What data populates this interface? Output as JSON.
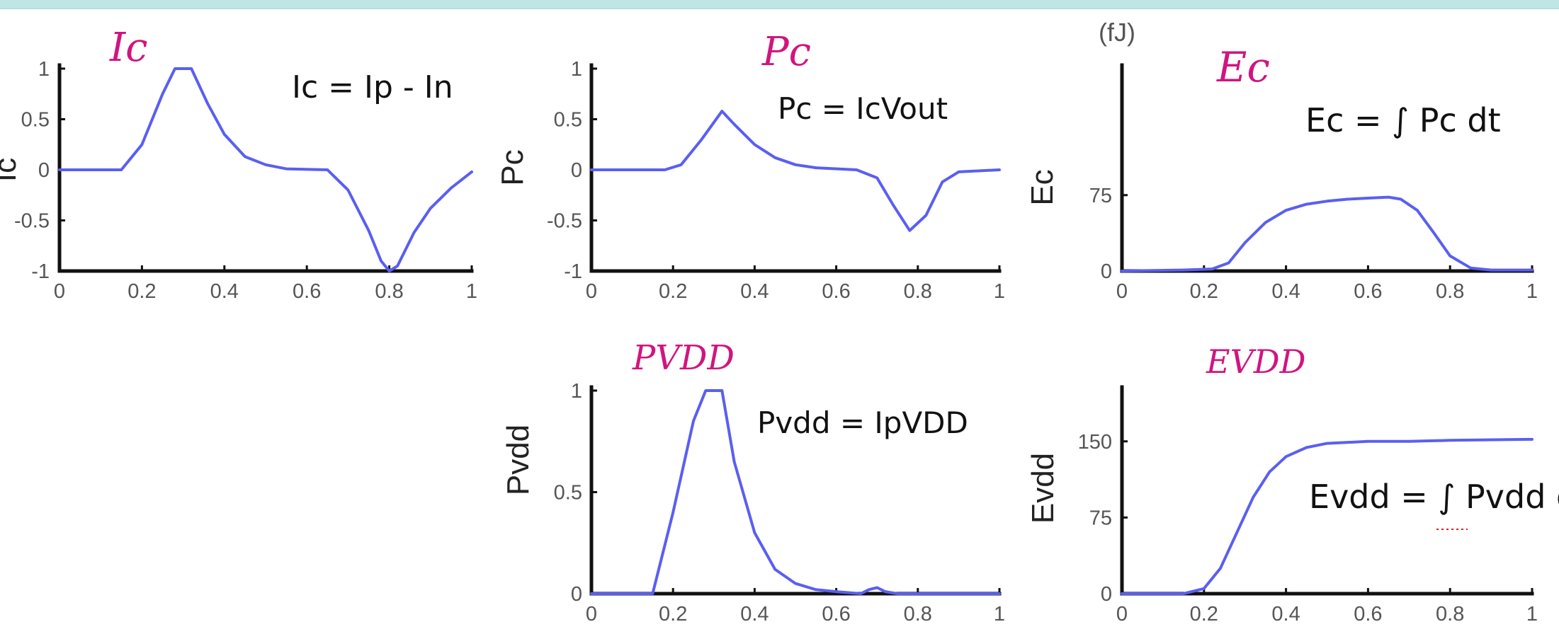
{
  "chart_data": [
    {
      "type": "line",
      "handwritten_title": "Ic",
      "ylabel": "Ic",
      "annotation": "Ic = Ip - In",
      "xlim": [
        0,
        1
      ],
      "ylim": [
        -1,
        1
      ],
      "x_ticks": [
        "0",
        "0.2",
        "0.4",
        "0.6",
        "0.8",
        "1"
      ],
      "y_ticks": [
        "1",
        "0.5",
        "0",
        "-0.5",
        "-1"
      ],
      "series": [
        {
          "x": [
            0,
            0.15,
            0.2,
            0.25,
            0.28,
            0.32,
            0.36,
            0.4,
            0.45,
            0.5,
            0.55,
            0.65,
            0.7,
            0.75,
            0.78,
            0.8,
            0.82,
            0.86,
            0.9,
            0.95,
            1.0
          ],
          "y": [
            0,
            0,
            0.25,
            0.75,
            1,
            1,
            0.65,
            0.35,
            0.13,
            0.05,
            0.01,
            0,
            -0.2,
            -0.6,
            -0.9,
            -1,
            -0.95,
            -0.62,
            -0.38,
            -0.18,
            -0.02
          ]
        }
      ]
    },
    {
      "type": "line",
      "handwritten_title": "Pc",
      "ylabel": "Pc",
      "annotation": "Pc = IcVout",
      "xlim": [
        0,
        1
      ],
      "ylim": [
        -1,
        1
      ],
      "x_ticks": [
        "0",
        "0.2",
        "0.4",
        "0.6",
        "0.8",
        "1"
      ],
      "y_ticks": [
        "1",
        "0.5",
        "0",
        "-0.5",
        "-1"
      ],
      "series": [
        {
          "x": [
            0,
            0.18,
            0.22,
            0.27,
            0.32,
            0.35,
            0.4,
            0.45,
            0.5,
            0.55,
            0.65,
            0.7,
            0.74,
            0.78,
            0.82,
            0.86,
            0.9,
            1.0
          ],
          "y": [
            0,
            0,
            0.05,
            0.3,
            0.58,
            0.45,
            0.25,
            0.12,
            0.05,
            0.02,
            0,
            -0.08,
            -0.35,
            -0.6,
            -0.45,
            -0.12,
            -0.02,
            0
          ]
        }
      ]
    },
    {
      "type": "line",
      "handwritten_title": "Ec",
      "ylabel": "Ec",
      "unit": "(fJ)",
      "annotation": "Ec = ∫ Pc dt",
      "xlim": [
        0,
        1
      ],
      "ylim": [
        0,
        200
      ],
      "x_ticks": [
        "0",
        "0.2",
        "0.4",
        "0.6",
        "0.8",
        "1"
      ],
      "y_ticks": [
        "75",
        "0"
      ],
      "series": [
        {
          "x": [
            0,
            0.15,
            0.22,
            0.26,
            0.3,
            0.35,
            0.4,
            0.45,
            0.5,
            0.55,
            0.6,
            0.65,
            0.68,
            0.72,
            0.76,
            0.8,
            0.85,
            0.9,
            1.0
          ],
          "y": [
            0,
            1,
            2,
            8,
            28,
            48,
            60,
            66,
            69,
            71,
            72,
            73,
            71,
            60,
            38,
            15,
            3,
            1,
            1
          ]
        }
      ]
    },
    {
      "type": "line",
      "handwritten_title": "PVDD",
      "ylabel": "Pvdd",
      "annotation": "Pvdd = IpVDD",
      "xlim": [
        0,
        1
      ],
      "ylim": [
        0,
        1
      ],
      "x_ticks": [
        "0",
        "0.2",
        "0.4",
        "0.6",
        "0.8",
        "1"
      ],
      "y_ticks": [
        "1",
        "0.5",
        "0"
      ],
      "series": [
        {
          "x": [
            0,
            0.15,
            0.2,
            0.25,
            0.28,
            0.32,
            0.35,
            0.4,
            0.45,
            0.5,
            0.55,
            0.6,
            0.66,
            0.68,
            0.7,
            0.72,
            0.75,
            1.0
          ],
          "y": [
            0,
            0,
            0.4,
            0.85,
            1,
            1,
            0.65,
            0.3,
            0.12,
            0.05,
            0.02,
            0.01,
            0,
            0.02,
            0.03,
            0.01,
            0,
            0
          ]
        }
      ]
    },
    {
      "type": "line",
      "handwritten_title": "EVDD",
      "ylabel": "Evdd",
      "annotation": "Evdd = ∫ Pvdd dt",
      "xlim": [
        0,
        1
      ],
      "ylim": [
        0,
        200
      ],
      "x_ticks": [
        "0",
        "0.2",
        "0.4",
        "0.6",
        "0.8",
        "1"
      ],
      "y_ticks": [
        "150",
        "75",
        "0"
      ],
      "series": [
        {
          "x": [
            0,
            0.15,
            0.2,
            0.24,
            0.28,
            0.32,
            0.36,
            0.4,
            0.45,
            0.5,
            0.6,
            0.7,
            0.8,
            1.0
          ],
          "y": [
            0,
            0,
            5,
            25,
            60,
            95,
            120,
            135,
            144,
            148,
            150,
            150,
            151,
            152
          ]
        }
      ]
    }
  ]
}
